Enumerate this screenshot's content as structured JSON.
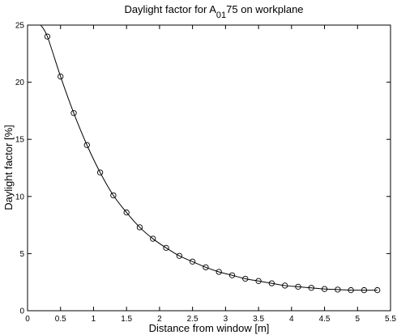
{
  "chart_data": {
    "type": "line",
    "title": {
      "prefix": "Daylight factor for A",
      "subscript": "01",
      "suffix": "75 on workplane"
    },
    "xlabel": "Distance from window [m]",
    "ylabel": "Daylight factor [%]",
    "xlim": [
      0,
      5.5
    ],
    "ylim": [
      0,
      25
    ],
    "xticks": [
      0,
      0.5,
      1,
      1.5,
      2,
      2.5,
      3,
      3.5,
      4,
      4.5,
      5,
      5.5
    ],
    "xtick_labels": [
      "0",
      "0.5",
      "1",
      "1.5",
      "2",
      "2.5",
      "3",
      "3.5",
      "4",
      "4.5",
      "5",
      "5.5"
    ],
    "yticks": [
      0,
      5,
      10,
      15,
      20,
      25
    ],
    "ytick_labels": [
      "0",
      "5",
      "10",
      "15",
      "20",
      "25"
    ],
    "grid": false,
    "line_color": "#000000",
    "marker": "circle",
    "series": [
      {
        "x": [
          0.3,
          0.5,
          0.7,
          0.9,
          1.1,
          1.3,
          1.5,
          1.7,
          1.9,
          2.1,
          2.3,
          2.5,
          2.7,
          2.9,
          3.1,
          3.3,
          3.5,
          3.7,
          3.9,
          4.1,
          4.3,
          4.5,
          4.7,
          4.9,
          5.1,
          5.3
        ],
        "y": [
          24.0,
          20.5,
          17.3,
          14.5,
          12.1,
          10.1,
          8.6,
          7.3,
          6.3,
          5.5,
          4.8,
          4.3,
          3.8,
          3.4,
          3.1,
          2.8,
          2.6,
          2.4,
          2.2,
          2.1,
          2.0,
          1.9,
          1.85,
          1.8,
          1.8,
          1.8
        ]
      }
    ],
    "curve_start": {
      "x": 0.2,
      "y": 25
    }
  }
}
